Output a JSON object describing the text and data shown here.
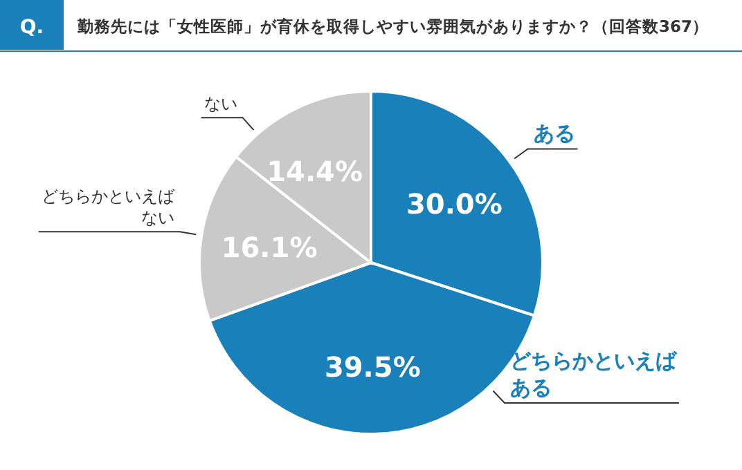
{
  "chart_data": {
    "type": "pie",
    "title": "勤務先には「女性医師」が育休を取得しやすい雰囲気がありますか？（回答数367）",
    "annotations": [
      "Q."
    ],
    "categories": [
      "ある",
      "どちらかといえばある",
      "どちらかといえばない",
      "ない"
    ],
    "values": [
      30.0,
      39.5,
      16.1,
      14.4
    ],
    "colors": [
      "#1a80b9",
      "#1a80b9",
      "#c9c9c9",
      "#c9c9c9"
    ],
    "value_labels": [
      "30.0%",
      "39.5%",
      "16.1%",
      "14.4%"
    ]
  }
}
